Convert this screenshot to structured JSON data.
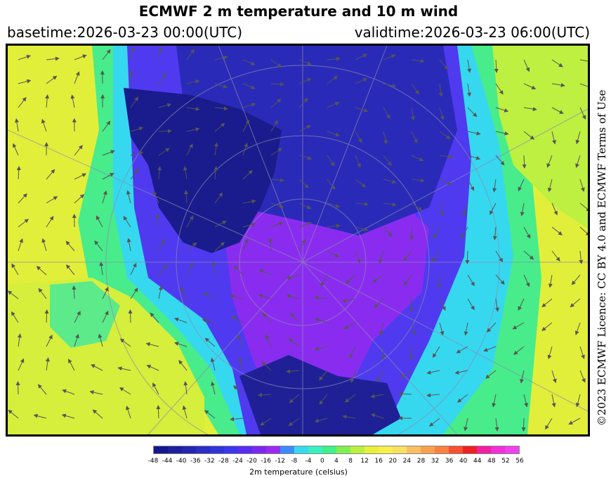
{
  "header": {
    "title": "ECMWF 2 m temperature and 10 m wind",
    "basetime": "basetime:2026-03-23 00:00(UTC)",
    "validtime": "validtime:2026-03-23 06:00(UTC)"
  },
  "licence": "©2023 ECMWF Licence: CC BY 4.0 and ECMWF Terms of Use",
  "colorbar": {
    "label": "2m temperature (celsius)",
    "ticks": [
      "-48",
      "-44",
      "-40",
      "-36",
      "-32",
      "-28",
      "-24",
      "-20",
      "-16",
      "-12",
      "-8",
      "-4",
      "0",
      "4",
      "8",
      "12",
      "16",
      "20",
      "24",
      "28",
      "32",
      "36",
      "40",
      "44",
      "48",
      "52",
      "56"
    ],
    "colors": [
      "#16178a",
      "#1d1f9c",
      "#2226b0",
      "#2a2ec4",
      "#3135d8",
      "#3a38ee",
      "#5a2cf2",
      "#7a28f0",
      "#9a2af0",
      "#3a8cf8",
      "#38d8f0",
      "#38f0c0",
      "#40f088",
      "#80f050",
      "#b8f040",
      "#e8f038",
      "#f8f048",
      "#f8e060",
      "#f8c060",
      "#f8a050",
      "#f88040",
      "#f85030",
      "#f02020",
      "#f020a0",
      "#f030d8",
      "#f040f0"
    ]
  },
  "map": {
    "region": "Arctic polar stereographic",
    "colors": {
      "very_cold": "#1a1b8c",
      "cold": "#2e30c8",
      "purple": "#7a2cf0",
      "cyan": "#38d8f0",
      "green": "#40f088",
      "yellow": "#e8f038"
    }
  }
}
